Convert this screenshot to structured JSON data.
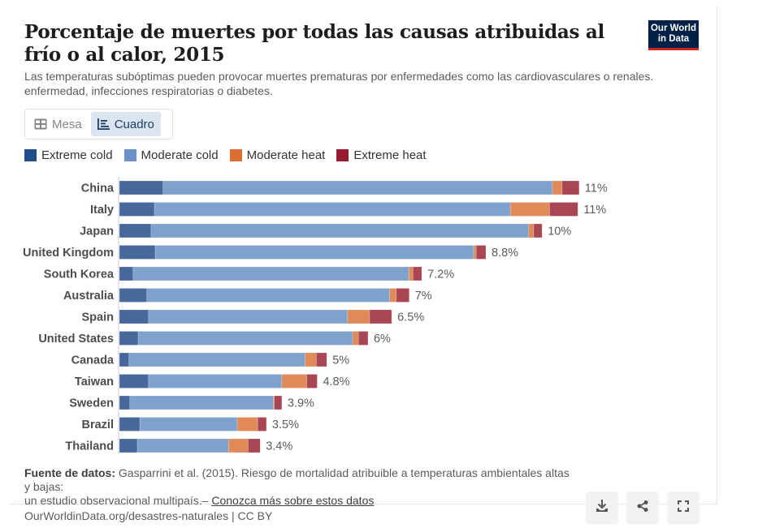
{
  "header": {
    "title": "Porcentaje de muertes por todas las causas atribuidas al frío o al calor, 2015",
    "subtitle": "Las temperaturas subóptimas pueden provocar muertes prematuras por enfermedades como las cardiovasculares o renales. enfermedad, infecciones respiratorias o diabetes.",
    "logo_line1": "Our World",
    "logo_line2": "in Data"
  },
  "tabs": [
    {
      "label": "Mesa",
      "icon": "table-icon",
      "active": false
    },
    {
      "label": "Cuadro",
      "icon": "chart-icon",
      "active": true
    }
  ],
  "legend": [
    {
      "label": "Extreme cold",
      "color": "#1f4e89"
    },
    {
      "label": "Moderate cold",
      "color": "#6b93c7"
    },
    {
      "label": "Moderate heat",
      "color": "#dd6e33"
    },
    {
      "label": "Extreme heat",
      "color": "#971b2e"
    }
  ],
  "chart_data": {
    "type": "bar",
    "orientation": "horizontal",
    "stacked": true,
    "title": "Porcentaje de muertes por todas las causas atribuidas al frío o al calor, 2015",
    "xlabel": "",
    "ylabel": "",
    "unit": "%",
    "xlim": [
      0,
      11.1
    ],
    "grid": false,
    "legend_position": "top-left",
    "categories": [
      "China",
      "Italy",
      "Japan",
      "United Kingdom",
      "South Korea",
      "Australia",
      "Spain",
      "United States",
      "Canada",
      "Taiwan",
      "Sweden",
      "Brazil",
      "Thailand"
    ],
    "series": [
      {
        "name": "Extreme cold",
        "color": "#1f4e89",
        "values": [
          1.05,
          0.84,
          0.76,
          0.86,
          0.33,
          0.66,
          0.7,
          0.45,
          0.23,
          0.7,
          0.25,
          0.49,
          0.43
        ]
      },
      {
        "name": "Moderate cold",
        "color": "#6b93c7",
        "values": [
          9.35,
          8.55,
          9.07,
          7.65,
          6.62,
          5.83,
          4.78,
          5.15,
          4.23,
          3.2,
          3.45,
          2.34,
          2.19
        ]
      },
      {
        "name": "Moderate heat",
        "color": "#dd6e33",
        "values": [
          0.23,
          0.94,
          0.12,
          0.06,
          0.1,
          0.16,
          0.53,
          0.14,
          0.27,
          0.6,
          0.02,
          0.49,
          0.47
        ]
      },
      {
        "name": "Extreme heat",
        "color": "#971b2e",
        "values": [
          0.41,
          0.68,
          0.2,
          0.23,
          0.21,
          0.31,
          0.53,
          0.23,
          0.25,
          0.25,
          0.18,
          0.21,
          0.29
        ]
      }
    ],
    "total_labels": [
      "11%",
      "11%",
      "10%",
      "8.8%",
      "7.2%",
      "7%",
      "6.5%",
      "6%",
      "5%",
      "4.8%",
      "3.9%",
      "3.5%",
      "3.4%"
    ]
  },
  "footer": {
    "source_label": "Fuente de datos:",
    "source_text_1": "Gasparrini et al. (2015). Riesgo de mortalidad atribuible a temperaturas ambientales altas y bajas:",
    "source_text_2": "un estudio observacional multipaís.–",
    "learn_more": "Conozca más sobre estos datos",
    "url": "OurWorldinData.org/desastres-naturales | CC BY"
  },
  "buttons": {
    "download": "download-icon",
    "share": "share-icon",
    "fullscreen": "fullscreen-icon"
  }
}
